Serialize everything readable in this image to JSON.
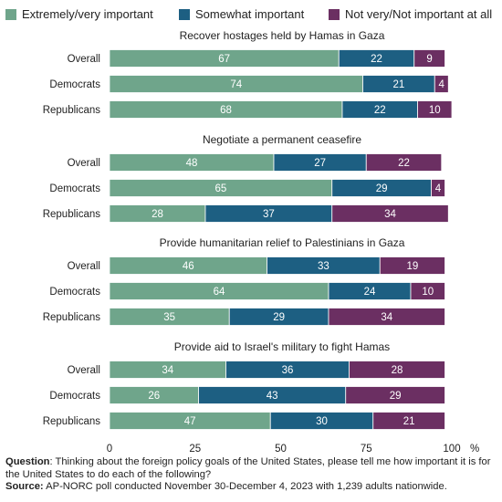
{
  "chart_data": {
    "type": "bar",
    "orientation": "horizontal",
    "stacked": true,
    "legend": {
      "placement": "top",
      "entries": [
        {
          "label": "Extremely/very important",
          "color": "#6fa58b"
        },
        {
          "label": "Somewhat important",
          "color": "#1d5f82"
        },
        {
          "label": "Not very/Not important at all",
          "color": "#6b2f62"
        }
      ]
    },
    "categories": [
      "Overall",
      "Democrats",
      "Republicans"
    ],
    "panels": [
      {
        "title": "Recover hostages held by Hamas in Gaza",
        "rows": [
          {
            "label": "Overall",
            "values": [
              67,
              22,
              9
            ]
          },
          {
            "label": "Democrats",
            "values": [
              74,
              21,
              4
            ]
          },
          {
            "label": "Republicans",
            "values": [
              68,
              22,
              10
            ]
          }
        ]
      },
      {
        "title": "Negotiate a permanent ceasefire",
        "rows": [
          {
            "label": "Overall",
            "values": [
              48,
              27,
              22
            ]
          },
          {
            "label": "Democrats",
            "values": [
              65,
              29,
              4
            ]
          },
          {
            "label": "Republicans",
            "values": [
              28,
              37,
              34
            ]
          }
        ]
      },
      {
        "title": "Provide humanitarian relief to Palestinians in Gaza",
        "rows": [
          {
            "label": "Overall",
            "values": [
              46,
              33,
              19
            ]
          },
          {
            "label": "Democrats",
            "values": [
              64,
              24,
              10
            ]
          },
          {
            "label": "Republicans",
            "values": [
              35,
              29,
              34
            ]
          }
        ]
      },
      {
        "title": "Provide aid to Israel's military to fight Hamas",
        "rows": [
          {
            "label": "Overall",
            "values": [
              34,
              36,
              28
            ]
          },
          {
            "label": "Democrats",
            "values": [
              26,
              43,
              29
            ]
          },
          {
            "label": "Republicans",
            "values": [
              47,
              30,
              21
            ]
          }
        ]
      }
    ],
    "xaxis": {
      "ticks": [
        "0",
        "25",
        "50",
        "75",
        "100"
      ],
      "tick_values": [
        0,
        25,
        50,
        75,
        100
      ],
      "unit": "%",
      "xlim": [
        0,
        100
      ]
    },
    "grid": false
  },
  "footnote": {
    "question_label": "Question",
    "question_text": ": Thinking about the foreign policy goals of the United States, please tell me how important it is for the United States to do each of the following?",
    "source_label": "Source:",
    "source_text": " AP-NORC poll conducted November 30-December 4, 2023 with 1,239 adults nationwide."
  }
}
